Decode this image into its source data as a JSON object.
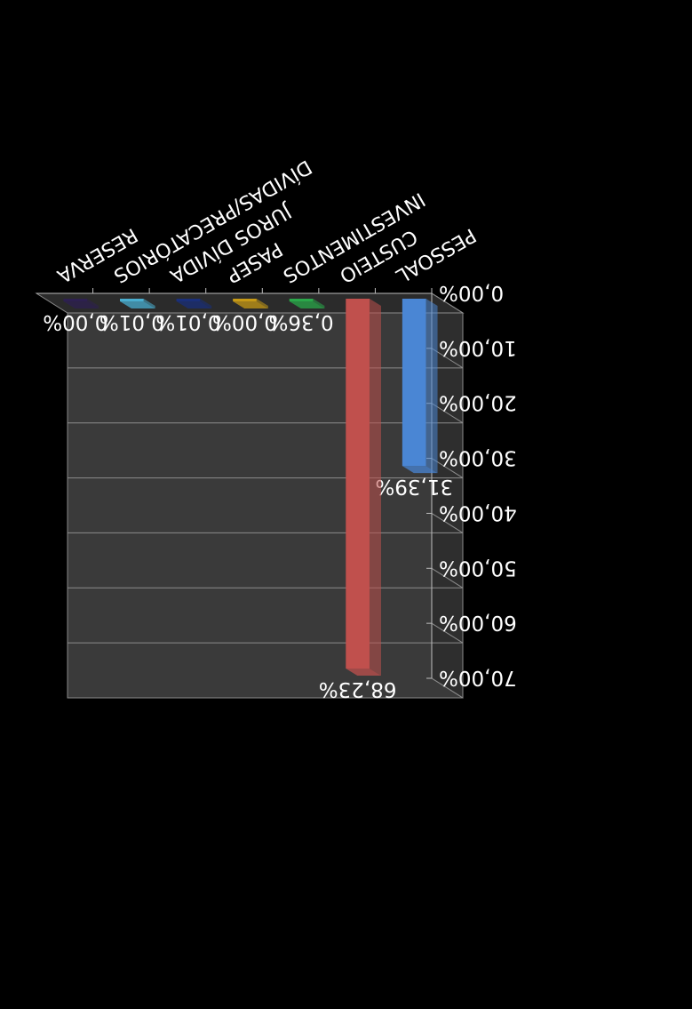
{
  "chart_data": {
    "type": "bar",
    "categories": [
      "PESSOAL",
      "CUSTEIO",
      "INVESTIMENTOS",
      "PASEP",
      "JUROS DÍVIDA",
      "DÍVIDAS/PRECATÓRIOS",
      "RESERVA"
    ],
    "values": [
      31.39,
      68.23,
      0.36,
      0.0,
      0.01,
      0.01,
      0.0
    ],
    "value_labels": [
      "31,39%",
      "68,23%",
      "0,36%",
      "0,00%",
      "0,01%",
      "0,01%",
      "0,00%"
    ],
    "colors": [
      "#4a86d4",
      "#c0504d",
      "#2aa84a",
      "#c79a16",
      "#1a2f7a",
      "#4aaed0",
      "#2d2050"
    ],
    "y_ticks": [
      "0,00%",
      "10,00%",
      "20,00%",
      "30,00%",
      "40,00%",
      "50,00%",
      "60,00%",
      "70,00%"
    ],
    "ylim": [
      0,
      70
    ],
    "title": "",
    "xlabel": "",
    "ylabel": "",
    "grid": true,
    "orientation": "rotated-180",
    "background": "#000000",
    "plot_background": "#3a3a3a"
  }
}
